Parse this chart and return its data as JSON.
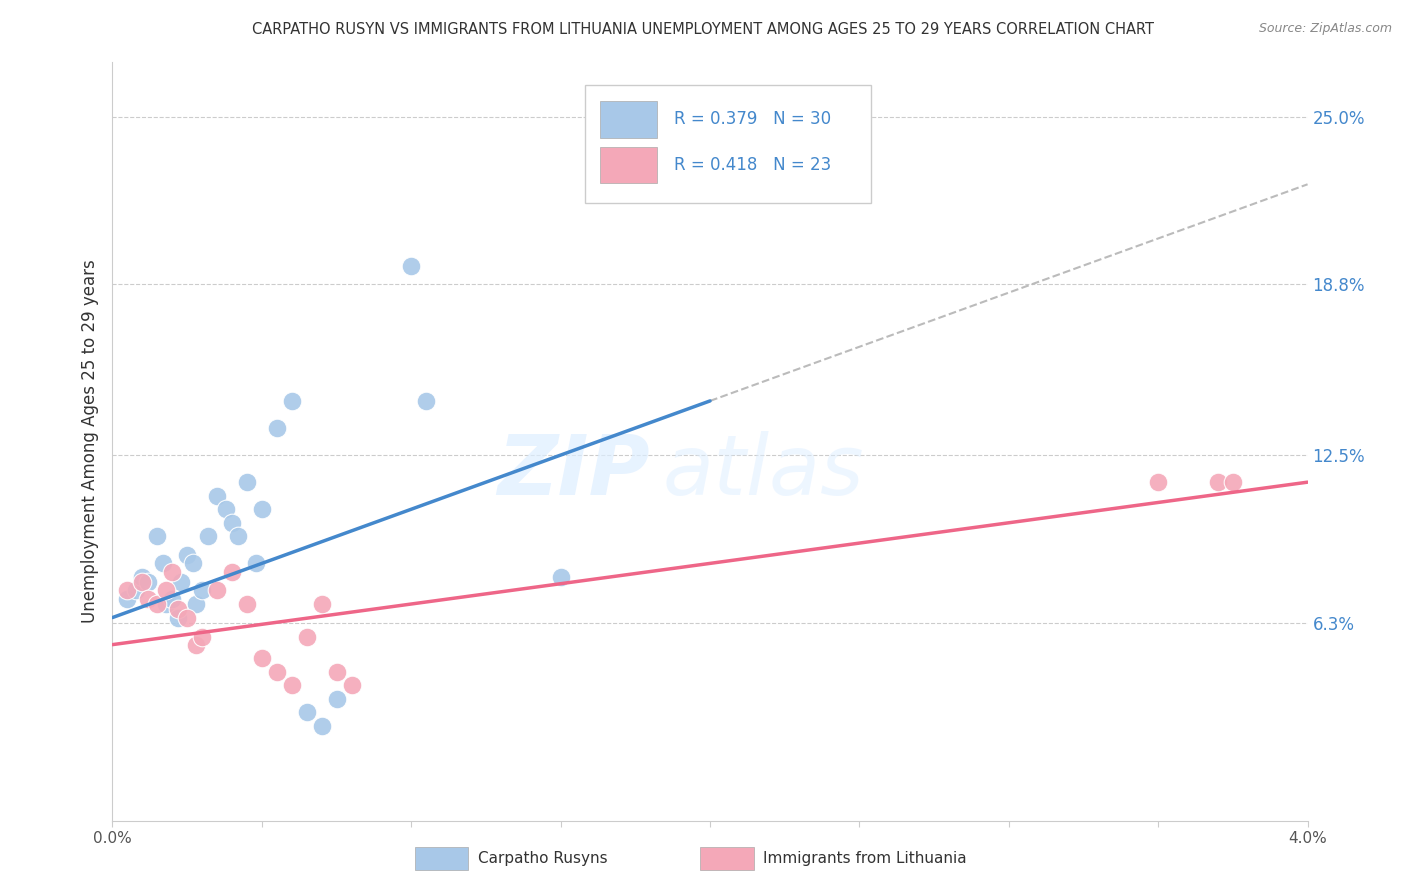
{
  "title": "CARPATHO RUSYN VS IMMIGRANTS FROM LITHUANIA UNEMPLOYMENT AMONG AGES 25 TO 29 YEARS CORRELATION CHART",
  "source": "Source: ZipAtlas.com",
  "ylabel": "Unemployment Among Ages 25 to 29 years",
  "ytick_values": [
    6.3,
    12.5,
    18.8,
    25.0
  ],
  "xlim": [
    0.0,
    4.0
  ],
  "ylim": [
    -1.0,
    27.0
  ],
  "blue_color": "#A8C8E8",
  "pink_color": "#F4A8B8",
  "blue_line_color": "#4488CC",
  "pink_line_color": "#EE6688",
  "dashed_line_color": "#BBBBBB",
  "background_color": "#FFFFFF",
  "watermark_zip": "ZIP",
  "watermark_atlas": "atlas",
  "legend_label_blue": "Carpatho Rusyns",
  "legend_label_pink": "Immigrants from Lithuania",
  "blue_scatter_x": [
    0.05,
    0.08,
    0.1,
    0.12,
    0.15,
    0.17,
    0.18,
    0.2,
    0.22,
    0.23,
    0.25,
    0.27,
    0.28,
    0.3,
    0.32,
    0.35,
    0.38,
    0.4,
    0.42,
    0.45,
    0.48,
    0.5,
    0.55,
    0.6,
    0.65,
    0.7,
    0.75,
    1.0,
    1.05,
    1.5
  ],
  "blue_scatter_y": [
    7.2,
    7.5,
    8.0,
    7.8,
    9.5,
    8.5,
    7.0,
    7.2,
    6.5,
    7.8,
    8.8,
    8.5,
    7.0,
    7.5,
    9.5,
    11.0,
    10.5,
    10.0,
    9.5,
    11.5,
    8.5,
    10.5,
    13.5,
    14.5,
    3.0,
    2.5,
    3.5,
    19.5,
    14.5,
    8.0
  ],
  "pink_scatter_x": [
    0.05,
    0.1,
    0.12,
    0.15,
    0.18,
    0.2,
    0.22,
    0.25,
    0.28,
    0.3,
    0.35,
    0.4,
    0.45,
    0.5,
    0.55,
    0.6,
    0.65,
    0.7,
    0.75,
    0.8,
    3.5,
    3.7,
    3.75
  ],
  "pink_scatter_y": [
    7.5,
    7.8,
    7.2,
    7.0,
    7.5,
    8.2,
    6.8,
    6.5,
    5.5,
    5.8,
    7.5,
    8.2,
    7.0,
    5.0,
    4.5,
    4.0,
    5.8,
    7.0,
    4.5,
    4.0,
    11.5,
    11.5,
    11.5
  ],
  "blue_line_x0": 0.0,
  "blue_line_y0": 6.5,
  "blue_line_x1": 2.0,
  "blue_line_y1": 14.5,
  "blue_dash_x0": 2.0,
  "blue_dash_x1": 4.0,
  "pink_line_x0": 0.0,
  "pink_line_y0": 5.5,
  "pink_line_x1": 4.0,
  "pink_line_y1": 11.5
}
